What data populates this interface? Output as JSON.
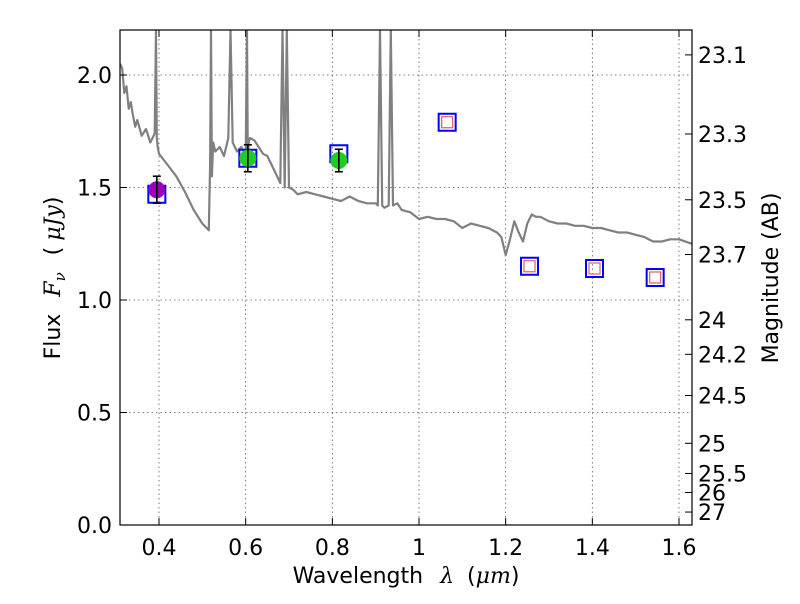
{
  "chart_data": {
    "type": "scatter",
    "title": "",
    "xlabel": {
      "text": "Wavelength",
      "symbol": "λ",
      "unit_open": "(",
      "unit": "μm",
      "unit_close": ")"
    },
    "ylabel": {
      "text": "Flux",
      "symbol": "F",
      "subscript": "ν",
      "unit_open": "(",
      "unit": "μJy",
      "unit_close": ")"
    },
    "ylabel_right": "Magnitude (AB)",
    "xlim": [
      0.31,
      1.63
    ],
    "ylim": [
      0.0,
      2.2
    ],
    "grid": true,
    "x_ticks": [
      {
        "value": 0.4,
        "label": "0.4"
      },
      {
        "value": 0.6,
        "label": "0.6"
      },
      {
        "value": 0.8,
        "label": "0.8"
      },
      {
        "value": 1.0,
        "label": "1"
      },
      {
        "value": 1.2,
        "label": "1.2"
      },
      {
        "value": 1.4,
        "label": "1.4"
      },
      {
        "value": 1.6,
        "label": "1.6"
      }
    ],
    "y_ticks": [
      {
        "value": 0.0,
        "label": "0.0"
      },
      {
        "value": 0.5,
        "label": "0.5"
      },
      {
        "value": 1.0,
        "label": "1.0"
      },
      {
        "value": 1.5,
        "label": "1.5"
      },
      {
        "value": 2.0,
        "label": "2.0"
      }
    ],
    "right_ticks": [
      {
        "mag": 23.1,
        "label": "23.1"
      },
      {
        "mag": 23.3,
        "label": "23.3"
      },
      {
        "mag": 23.5,
        "label": "23.5"
      },
      {
        "mag": 23.7,
        "label": "23.7"
      },
      {
        "mag": 24.0,
        "label": "24"
      },
      {
        "mag": 24.2,
        "label": "24.2"
      },
      {
        "mag": 24.5,
        "label": "24.5"
      },
      {
        "mag": 25.0,
        "label": "25"
      },
      {
        "mag": 25.5,
        "label": "25.5"
      },
      {
        "mag": 26.0,
        "label": "26"
      },
      {
        "mag": 27.0,
        "label": "27"
      }
    ],
    "series": [
      {
        "name": "model spectrum",
        "kind": "line",
        "color": "#808080",
        "x": [
          0.31,
          0.315,
          0.32,
          0.325,
          0.33,
          0.335,
          0.34,
          0.345,
          0.35,
          0.36,
          0.37,
          0.38,
          0.39,
          0.393,
          0.395,
          0.397,
          0.4,
          0.42,
          0.44,
          0.46,
          0.48,
          0.5,
          0.51,
          0.515,
          0.518,
          0.52,
          0.522,
          0.525,
          0.53,
          0.54,
          0.55,
          0.56,
          0.565,
          0.57,
          0.58,
          0.59,
          0.6,
          0.603,
          0.605,
          0.607,
          0.61,
          0.62,
          0.63,
          0.64,
          0.65,
          0.66,
          0.67,
          0.68,
          0.685,
          0.69,
          0.695,
          0.7,
          0.71,
          0.72,
          0.74,
          0.76,
          0.78,
          0.8,
          0.82,
          0.84,
          0.86,
          0.88,
          0.9,
          0.905,
          0.91,
          0.915,
          0.92,
          0.93,
          0.935,
          0.94,
          0.95,
          0.96,
          0.98,
          1.0,
          1.02,
          1.04,
          1.06,
          1.08,
          1.1,
          1.12,
          1.14,
          1.16,
          1.18,
          1.19,
          1.2,
          1.21,
          1.22,
          1.23,
          1.24,
          1.25,
          1.26,
          1.27,
          1.28,
          1.3,
          1.32,
          1.34,
          1.36,
          1.38,
          1.4,
          1.42,
          1.44,
          1.46,
          1.48,
          1.5,
          1.52,
          1.54,
          1.56,
          1.58,
          1.6,
          1.63
        ],
        "y": [
          2.05,
          2.03,
          1.92,
          1.95,
          1.85,
          1.88,
          1.82,
          1.77,
          1.8,
          1.73,
          1.76,
          1.7,
          1.74,
          2.2,
          1.72,
          1.68,
          1.65,
          1.6,
          1.55,
          1.48,
          1.4,
          1.34,
          1.32,
          1.31,
          1.6,
          2.2,
          1.55,
          1.7,
          1.66,
          1.68,
          1.64,
          1.72,
          2.2,
          1.7,
          1.66,
          1.68,
          1.64,
          2.2,
          1.62,
          1.7,
          1.72,
          1.71,
          1.68,
          1.65,
          1.64,
          1.6,
          1.56,
          1.52,
          2.2,
          1.5,
          2.2,
          1.5,
          1.49,
          1.47,
          1.48,
          1.47,
          1.46,
          1.45,
          1.44,
          1.46,
          1.44,
          1.43,
          1.43,
          1.42,
          2.2,
          1.42,
          1.41,
          1.42,
          2.2,
          1.42,
          1.43,
          1.4,
          1.39,
          1.36,
          1.37,
          1.36,
          1.36,
          1.35,
          1.32,
          1.34,
          1.33,
          1.32,
          1.3,
          1.28,
          1.2,
          1.27,
          1.35,
          1.3,
          1.26,
          1.34,
          1.38,
          1.37,
          1.37,
          1.35,
          1.34,
          1.34,
          1.33,
          1.33,
          1.32,
          1.32,
          1.31,
          1.3,
          1.3,
          1.29,
          1.28,
          1.26,
          1.26,
          1.27,
          1.27,
          1.25
        ]
      },
      {
        "name": "model magnitudes",
        "kind": "square-marker",
        "color": "#0000ff",
        "x": [
          0.395,
          0.605,
          0.815,
          1.065,
          1.255,
          1.405,
          1.545
        ],
        "y": [
          1.47,
          1.63,
          1.65,
          1.79,
          1.15,
          1.14,
          1.1
        ]
      },
      {
        "name": "model magnitudes (inner)",
        "kind": "square-marker-inner",
        "color": "#e06060",
        "x": [
          1.065,
          1.255,
          1.405,
          1.545
        ],
        "y": [
          1.79,
          1.15,
          1.14,
          1.1
        ]
      },
      {
        "name": "observed (violet)",
        "kind": "circle-marker",
        "color": "#9900bb",
        "x": [
          0.395
        ],
        "y": [
          1.49
        ],
        "yerr": [
          0.06
        ]
      },
      {
        "name": "observed (green)",
        "kind": "circle-marker",
        "color": "#22cc22",
        "x": [
          0.605,
          0.815
        ],
        "y": [
          1.63,
          1.62
        ],
        "yerr": [
          0.06,
          0.05
        ]
      }
    ]
  }
}
